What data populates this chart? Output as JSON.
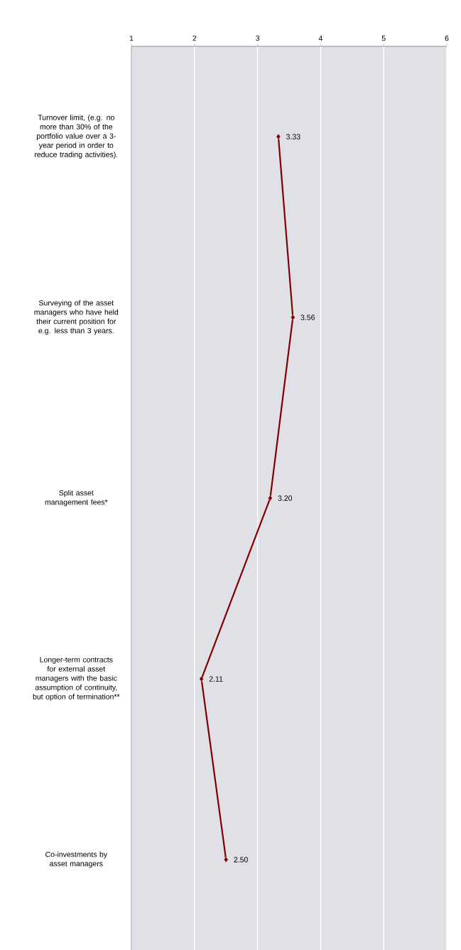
{
  "chart_data": {
    "type": "line",
    "orientation": "horizontal",
    "categories": [
      "Turnover limit, (e.g. no more than 30% of the portfolio value over a 3-year period in order to reduce trading activities).",
      "Surveying of the asset managers who have held their current position for e.g. less than 3 years.",
      "Split asset management fees*",
      "Longer-term contracts for external asset managers with the basic assumption of continuity, but option of termination**",
      "Co-investments by asset managers"
    ],
    "values": [
      3.33,
      3.56,
      3.2,
      2.11,
      2.5
    ],
    "value_labels": [
      "3.33",
      "3.56",
      "3.20",
      "2.11",
      "2.50"
    ],
    "color": "#800000",
    "marker": "diamond",
    "line_style": "solid",
    "grid": "x",
    "xlim": [
      1,
      6
    ],
    "xticks": [
      1,
      2,
      3,
      4,
      5,
      6
    ]
  }
}
